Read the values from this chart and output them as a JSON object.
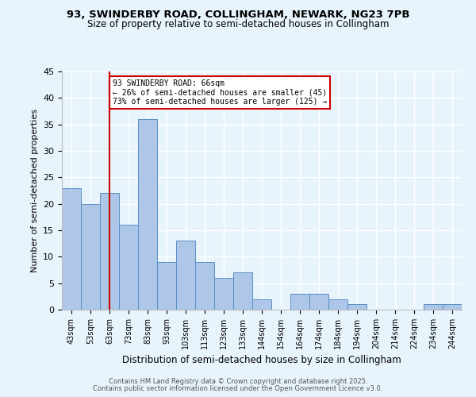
{
  "title1": "93, SWINDERBY ROAD, COLLINGHAM, NEWARK, NG23 7PB",
  "title2": "Size of property relative to semi-detached houses in Collingham",
  "xlabel": "Distribution of semi-detached houses by size in Collingham",
  "ylabel": "Number of semi-detached properties",
  "categories": [
    "43sqm",
    "53sqm",
    "63sqm",
    "73sqm",
    "83sqm",
    "93sqm",
    "103sqm",
    "113sqm",
    "123sqm",
    "133sqm",
    "144sqm",
    "154sqm",
    "164sqm",
    "174sqm",
    "184sqm",
    "194sqm",
    "204sqm",
    "214sqm",
    "224sqm",
    "234sqm",
    "244sqm"
  ],
  "values": [
    23,
    20,
    22,
    16,
    36,
    9,
    13,
    9,
    6,
    7,
    2,
    0,
    3,
    3,
    2,
    1,
    0,
    0,
    0,
    1,
    1
  ],
  "bar_color": "#aec6e8",
  "bar_edge_color": "#5a8fc4",
  "vline_x": 2,
  "vline_color": "#cc0000",
  "annotation_line1": "93 SWINDERBY ROAD: 66sqm",
  "annotation_line2": "← 26% of semi-detached houses are smaller (45)",
  "annotation_line3": "73% of semi-detached houses are larger (125) →",
  "annotation_box_color": "#ffffff",
  "annotation_box_edge": "#cc0000",
  "ylim": [
    0,
    45
  ],
  "yticks": [
    0,
    5,
    10,
    15,
    20,
    25,
    30,
    35,
    40,
    45
  ],
  "footer1": "Contains HM Land Registry data © Crown copyright and database right 2025.",
  "footer2": "Contains public sector information licensed under the Open Government Licence v3.0.",
  "bg_color": "#e8f4fc",
  "plot_bg_color": "#e8f4fc",
  "grid_color": "#ffffff"
}
